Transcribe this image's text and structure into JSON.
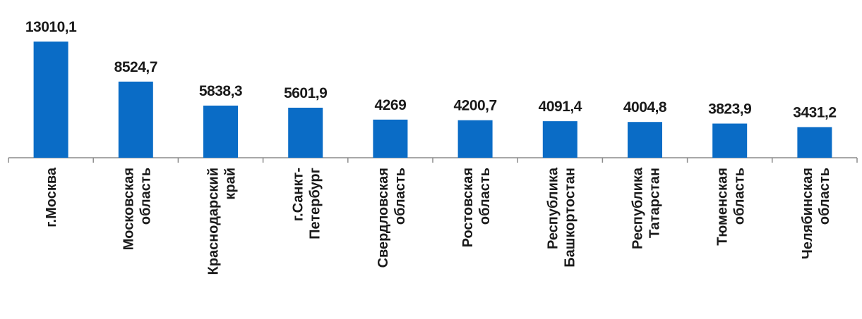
{
  "chart_data": {
    "type": "bar",
    "title": "",
    "xlabel": "",
    "ylabel": "",
    "grid": false,
    "legend": "none",
    "bar_color": "#0a6cc6",
    "ylim": [
      0,
      14000
    ],
    "categories": [
      [
        "г.Москва"
      ],
      [
        "Московская",
        "область"
      ],
      [
        "Краснодарский",
        "край"
      ],
      [
        "г.Санкт-",
        "Петербург"
      ],
      [
        "Свердловская",
        "область"
      ],
      [
        "Ростовская",
        "область"
      ],
      [
        "Республика",
        "Башкортостан"
      ],
      [
        "Республика",
        "Татарстан"
      ],
      [
        "Тюменская",
        "область"
      ],
      [
        "Челябинская",
        "область"
      ]
    ],
    "values": [
      13010.1,
      8524.7,
      5838.3,
      5601.9,
      4269,
      4200.7,
      4091.4,
      4004.8,
      3823.9,
      3431.2
    ],
    "labels": [
      "13010,1",
      "8524,7",
      "5838,3",
      "5601,9",
      "4269",
      "4200,7",
      "4091,4",
      "4004,8",
      "3823,9",
      "3431,2"
    ]
  }
}
